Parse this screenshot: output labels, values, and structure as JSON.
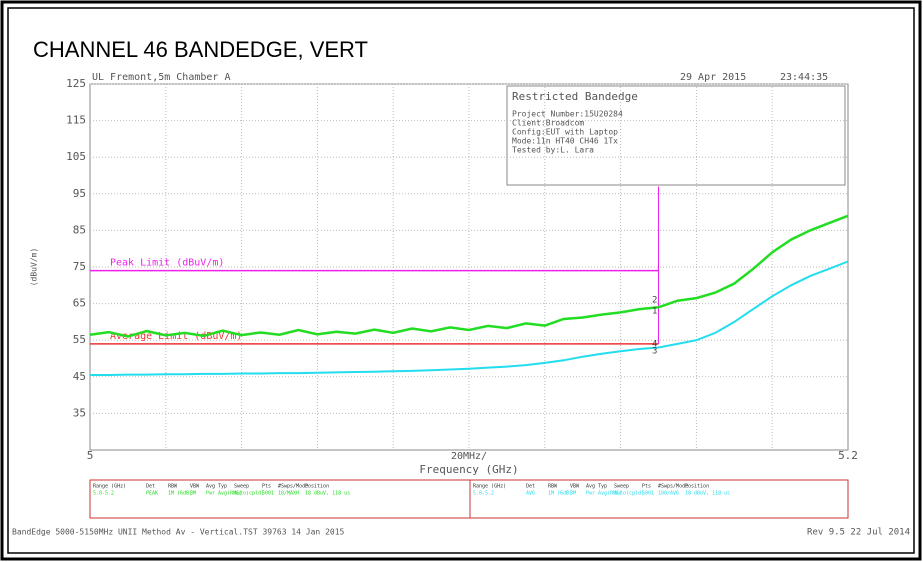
{
  "chart_data": {
    "type": "line",
    "title": "CHANNEL 46 BANDEDGE, VERT",
    "site": "UL Fremont,5m Chamber A",
    "date": "29 Apr 2015",
    "time": "23:44:35",
    "info_box": {
      "heading": "Restricted Bandedge",
      "lines": [
        "Project Number:15U20284",
        "Client:Broadcom",
        "Config:EUT with Laptop",
        "Mode:11n HT40 CH46 1Tx",
        "Tested by:L. Lara"
      ]
    },
    "ylabel": "(dBuV/m)",
    "xlabel": "Frequency (GHz)",
    "xdiv_label": "20MHz/",
    "xlim": [
      5,
      5.2
    ],
    "xticks": [
      5,
      5.2
    ],
    "xgrid": [
      5.02,
      5.04,
      5.06,
      5.08,
      5.1,
      5.12,
      5.14,
      5.16,
      5.18
    ],
    "ylim": [
      25,
      125
    ],
    "yticks": [
      35,
      45,
      55,
      65,
      75,
      85,
      95,
      105,
      115,
      125
    ],
    "grid": true,
    "x": [
      5,
      5.005,
      5.01,
      5.015,
      5.02,
      5.025,
      5.03,
      5.035,
      5.04,
      5.045,
      5.05,
      5.055,
      5.06,
      5.065,
      5.07,
      5.075,
      5.08,
      5.085,
      5.09,
      5.095,
      5.1,
      5.105,
      5.11,
      5.115,
      5.12,
      5.125,
      5.13,
      5.135,
      5.14,
      5.145,
      5.15,
      5.155,
      5.16,
      5.165,
      5.17,
      5.175,
      5.18,
      5.185,
      5.19,
      5.195,
      5.2
    ],
    "series": [
      {
        "name": "Peak",
        "color": "#22dd22",
        "values": [
          56.5,
          57.2,
          56.0,
          57.5,
          56.3,
          57.0,
          56.2,
          57.6,
          56.4,
          57.1,
          56.5,
          57.8,
          56.6,
          57.3,
          56.8,
          57.9,
          57.0,
          58.2,
          57.4,
          58.5,
          57.8,
          58.9,
          58.3,
          59.6,
          59.0,
          60.8,
          61.2,
          62.0,
          62.6,
          63.5,
          64.0,
          65.8,
          66.5,
          68.0,
          70.5,
          74.5,
          79.0,
          82.5,
          85.0,
          87.0,
          89.0
        ]
      },
      {
        "name": "Average",
        "color": "#22ddee",
        "values": [
          45.5,
          45.5,
          45.6,
          45.6,
          45.7,
          45.7,
          45.8,
          45.8,
          45.9,
          45.9,
          46.0,
          46.0,
          46.1,
          46.2,
          46.3,
          46.4,
          46.5,
          46.6,
          46.8,
          47.0,
          47.2,
          47.5,
          47.8,
          48.2,
          48.8,
          49.5,
          50.5,
          51.3,
          52.0,
          52.6,
          53.0,
          54.0,
          55.0,
          57.0,
          60.0,
          63.5,
          67.0,
          70.0,
          72.5,
          74.5,
          76.5
        ]
      }
    ],
    "limits": [
      {
        "name": "Peak Limit (dBuV/m)",
        "value": 74,
        "x_end": 5.15,
        "color": "#ee22ee"
      },
      {
        "name": "Average Limit (dBuV/m)",
        "value": 54,
        "x_end": 5.15,
        "color": "#ee3333"
      }
    ],
    "band_edge": {
      "x": 5.15,
      "y_range": [
        54,
        97
      ],
      "color": "#ee22ee"
    },
    "markers": [
      {
        "label": "2",
        "x": 5.149,
        "y": 66
      },
      {
        "label": "1",
        "x": 5.149,
        "y": 63
      },
      {
        "label": "4",
        "x": 5.149,
        "y": 54
      },
      {
        "label": "3",
        "x": 5.149,
        "y": 52
      }
    ],
    "table": {
      "headers": [
        "Range (GHz)",
        "Det",
        "RBW",
        "VBW",
        "Avg Typ",
        "Sweep",
        "Pts",
        "#Swps/Mode",
        "Position"
      ],
      "rows": [
        [
          "5.0-5.2",
          "PEAK",
          "1M (6dB)",
          "3M",
          "Pwr Avg(RMS)",
          "auto(cpld)",
          "5001",
          "10/MAXH",
          "18 dBuV, 118 us"
        ],
        [
          "5.0-5.2",
          "AVG",
          "1M (6dB)",
          "3M",
          "Pwr Avg(RMS)",
          "auto(cpld)",
          "5001",
          "100/AVG",
          "18 dBuV, 118 us"
        ]
      ]
    },
    "footer_left": "BandEdge 5000-5150MHz UNII Method Av - Vertical.TST 39763 14 Jan 2015",
    "footer_right": "Rev 9.5 22 Jul 2014"
  }
}
